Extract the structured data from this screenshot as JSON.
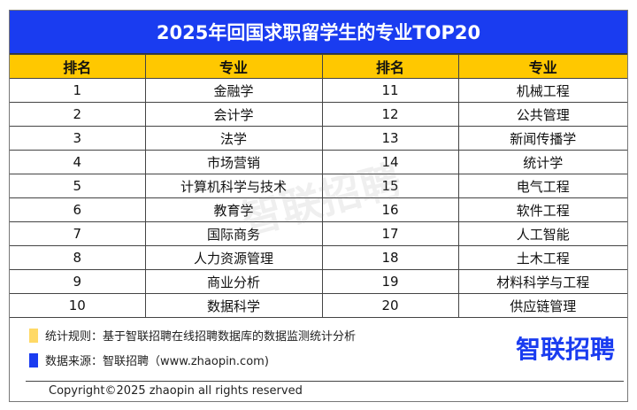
{
  "title": "2025年回国求职留学生的专业TOP20",
  "headers": [
    "排名",
    "专业",
    "排名",
    "专业"
  ],
  "rows": [
    [
      "1",
      "金融学",
      "11",
      "机械工程"
    ],
    [
      "2",
      "会计学",
      "12",
      "公共管理"
    ],
    [
      "3",
      "法学",
      "13",
      "新闻传播学"
    ],
    [
      "4",
      "市场营销",
      "14",
      "统计学"
    ],
    [
      "5",
      "计算机科学与技术",
      "15",
      "电气工程"
    ],
    [
      "6",
      "教育学",
      "16",
      "软件工程"
    ],
    [
      "7",
      "国际商务",
      "17",
      "人工智能"
    ],
    [
      "8",
      "人力资源管理",
      "18",
      "土木工程"
    ],
    [
      "9",
      "商业分析",
      "19",
      "材料科学与工程"
    ],
    [
      "10",
      "数据科学",
      "20",
      "供应链管理"
    ]
  ],
  "footer": {
    "rule": "统计规则：基于智联招聘在线招聘数据库的数据监测统计分析",
    "source": "数据来源：智联招聘（www.zhaopin.com)",
    "logo": "智联招聘",
    "copyright": "Copyright©2025 zhaopin all rights reserved",
    "watermark": "智联招聘"
  },
  "colors": {
    "title_bg": "#1a3cf0",
    "header_bg": "#ffc800",
    "rule_marker": "#ffd966",
    "source_marker": "#1a3cf0"
  }
}
